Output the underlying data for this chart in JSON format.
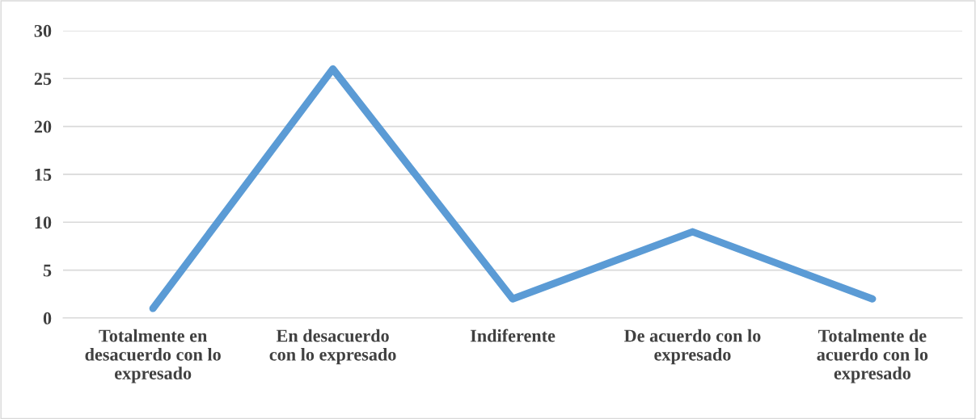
{
  "chart_data": {
    "type": "line",
    "categories": [
      "Totalmente en\ndesacuerdo con lo\nexpresado",
      "En desacuerdo\ncon lo expresado",
      "Indiferente",
      "De acuerdo con lo\nexpresado",
      "Totalmente de\nacuerdo con lo\nexpresado"
    ],
    "series": [
      {
        "color": "#5b9bd5",
        "values": [
          1,
          26,
          2,
          9,
          2
        ]
      }
    ],
    "ylim": [
      0,
      30
    ],
    "yticks": [
      0,
      5,
      10,
      15,
      20,
      25,
      30
    ],
    "grid": "y",
    "legend": false,
    "marker": "none",
    "line_style": "solid"
  }
}
